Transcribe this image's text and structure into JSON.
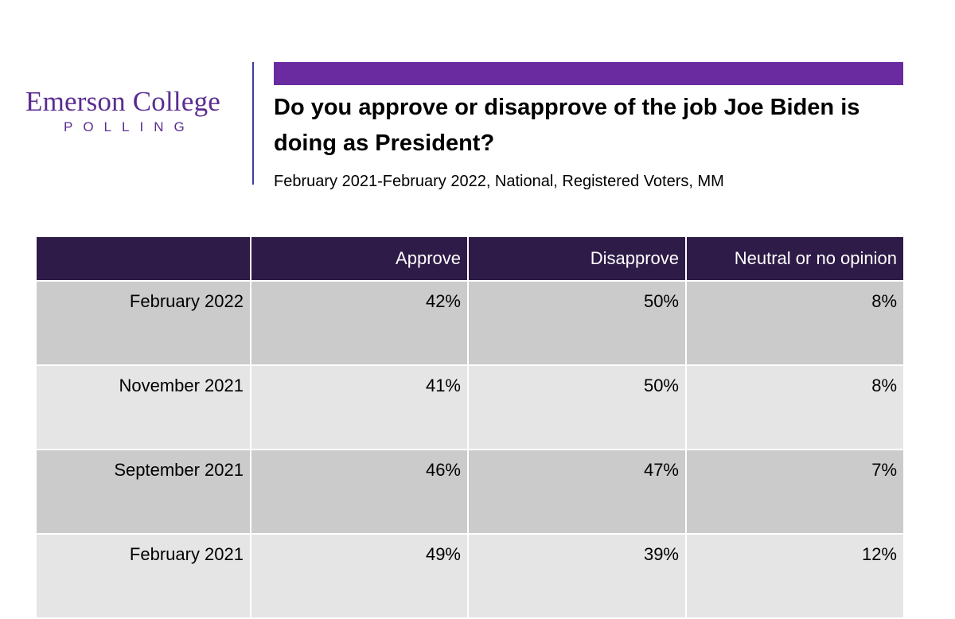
{
  "logo": {
    "name": "Emerson College",
    "sub": "POLLING"
  },
  "title": "Do you approve or disapprove of the job Joe Biden is doing as President?",
  "subtitle": "February 2021-February 2022, National, Registered Voters, MM",
  "colors": {
    "accent": "#6a2ba1",
    "header": "#2e1b47",
    "logo": "#5a2d91",
    "row_dark": "#cbcbcb",
    "row_light": "#e5e5e6"
  },
  "chart_data": {
    "type": "table",
    "columns": [
      "",
      "Approve",
      "Disapprove",
      "Neutral or no opinion"
    ],
    "rows": [
      {
        "label": "February 2022",
        "values": [
          "42%",
          "50%",
          "8%"
        ]
      },
      {
        "label": "November 2021",
        "values": [
          "41%",
          "50%",
          "8%"
        ]
      },
      {
        "label": "September 2021",
        "values": [
          "46%",
          "47%",
          "7%"
        ]
      },
      {
        "label": "February 2021",
        "values": [
          "49%",
          "39%",
          "12%"
        ]
      }
    ]
  }
}
